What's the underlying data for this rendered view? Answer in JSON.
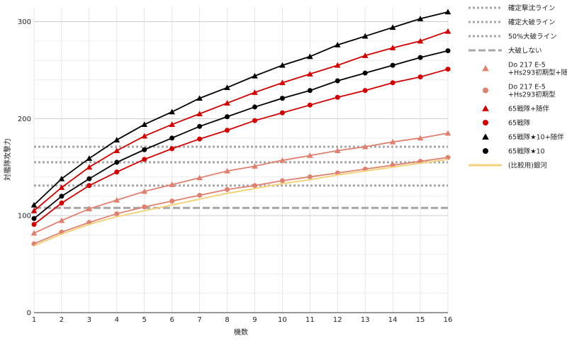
{
  "chart_data": {
    "type": "line",
    "title": "",
    "xlabel": "機数",
    "ylabel": "対艦隊攻撃力",
    "xlim": [
      1,
      16
    ],
    "ylim": [
      0,
      315
    ],
    "x": [
      1,
      2,
      3,
      4,
      5,
      6,
      7,
      8,
      9,
      10,
      11,
      12,
      13,
      14,
      15,
      16
    ],
    "x_ticks": [
      "1",
      "2",
      "3",
      "4",
      "5",
      "6",
      "7",
      "8",
      "9",
      "10",
      "11",
      "12",
      "13",
      "14",
      "15",
      "16"
    ],
    "y_ticks": [
      0,
      100,
      200,
      300
    ],
    "grid": true,
    "legend_position": "right",
    "series": [
      {
        "name": "確定撃沈ライン",
        "kind": "hline",
        "style": "dotted",
        "color": "#a6a6a6",
        "y": 171
      },
      {
        "name": "確定大破ライン",
        "kind": "hline",
        "style": "dotted",
        "color": "#a6a6a6",
        "y": 155
      },
      {
        "name": "50%大破ライン",
        "kind": "hline",
        "style": "dotted",
        "color": "#a6a6a6",
        "y": 131
      },
      {
        "name": "大破しない",
        "kind": "hline",
        "style": "dashed",
        "color": "#a6a6a6",
        "y": 108
      },
      {
        "name": "Do 217 E-5\n+Hs293初期型+随伴",
        "marker": "triangle",
        "color": "#e0806e",
        "values": [
          82,
          95,
          107,
          116,
          125,
          132,
          139,
          146,
          151,
          157,
          162,
          167,
          171,
          176,
          180,
          185
        ]
      },
      {
        "name": "Do 217 E-5\n+Hs293初期型",
        "marker": "circle",
        "color": "#e0806e",
        "values": [
          71,
          83,
          93,
          102,
          109,
          115,
          121,
          127,
          131,
          136,
          140,
          144,
          148,
          152,
          156,
          160
        ]
      },
      {
        "name": "65戦隊+随伴",
        "marker": "triangle",
        "color": "#d40000",
        "values": [
          105,
          129,
          150,
          167,
          182,
          194,
          205,
          216,
          227,
          237,
          246,
          255,
          265,
          273,
          280,
          290
        ]
      },
      {
        "name": "65戦隊",
        "marker": "circle",
        "color": "#d40000",
        "values": [
          91,
          113,
          131,
          145,
          158,
          169,
          179,
          188,
          198,
          206,
          214,
          222,
          229,
          237,
          243,
          251
        ]
      },
      {
        "name": "65戦隊★10+随伴",
        "marker": "triangle",
        "color": "#000000",
        "values": [
          111,
          138,
          159,
          178,
          194,
          207,
          221,
          232,
          244,
          255,
          264,
          276,
          285,
          294,
          303,
          310
        ]
      },
      {
        "name": "65戦隊★10",
        "marker": "circle",
        "color": "#000000",
        "values": [
          97,
          120,
          138,
          155,
          168,
          180,
          192,
          202,
          212,
          221,
          229,
          239,
          247,
          255,
          263,
          270
        ]
      },
      {
        "name": "(比較用)銀河",
        "marker": "none",
        "color": "#f3d27a",
        "values": [
          69,
          81,
          91,
          99,
          105,
          111,
          117,
          123,
          128,
          133,
          137,
          142,
          146,
          150,
          154,
          158
        ]
      }
    ]
  }
}
